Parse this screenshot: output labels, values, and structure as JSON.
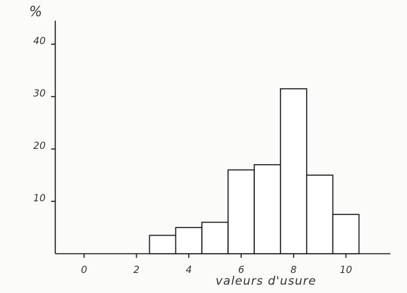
{
  "chart_data": {
    "type": "histogram",
    "ylabel": "%",
    "xlabel": "valeurs d'usure",
    "bins": [
      2.5,
      3.5,
      4.5,
      5.5,
      6.5,
      7.5,
      8.5,
      9.5,
      10.5
    ],
    "values": [
      3.5,
      5,
      6,
      16,
      17,
      31.5,
      15,
      7.5
    ],
    "color": "#ffffff",
    "xlim": [
      -1.1,
      11.7
    ],
    "ylim": [
      0,
      44.5
    ],
    "xticks": [
      0,
      2,
      4,
      6,
      8,
      10
    ],
    "yticks": [
      10,
      20,
      30,
      40
    ],
    "grid": false
  }
}
